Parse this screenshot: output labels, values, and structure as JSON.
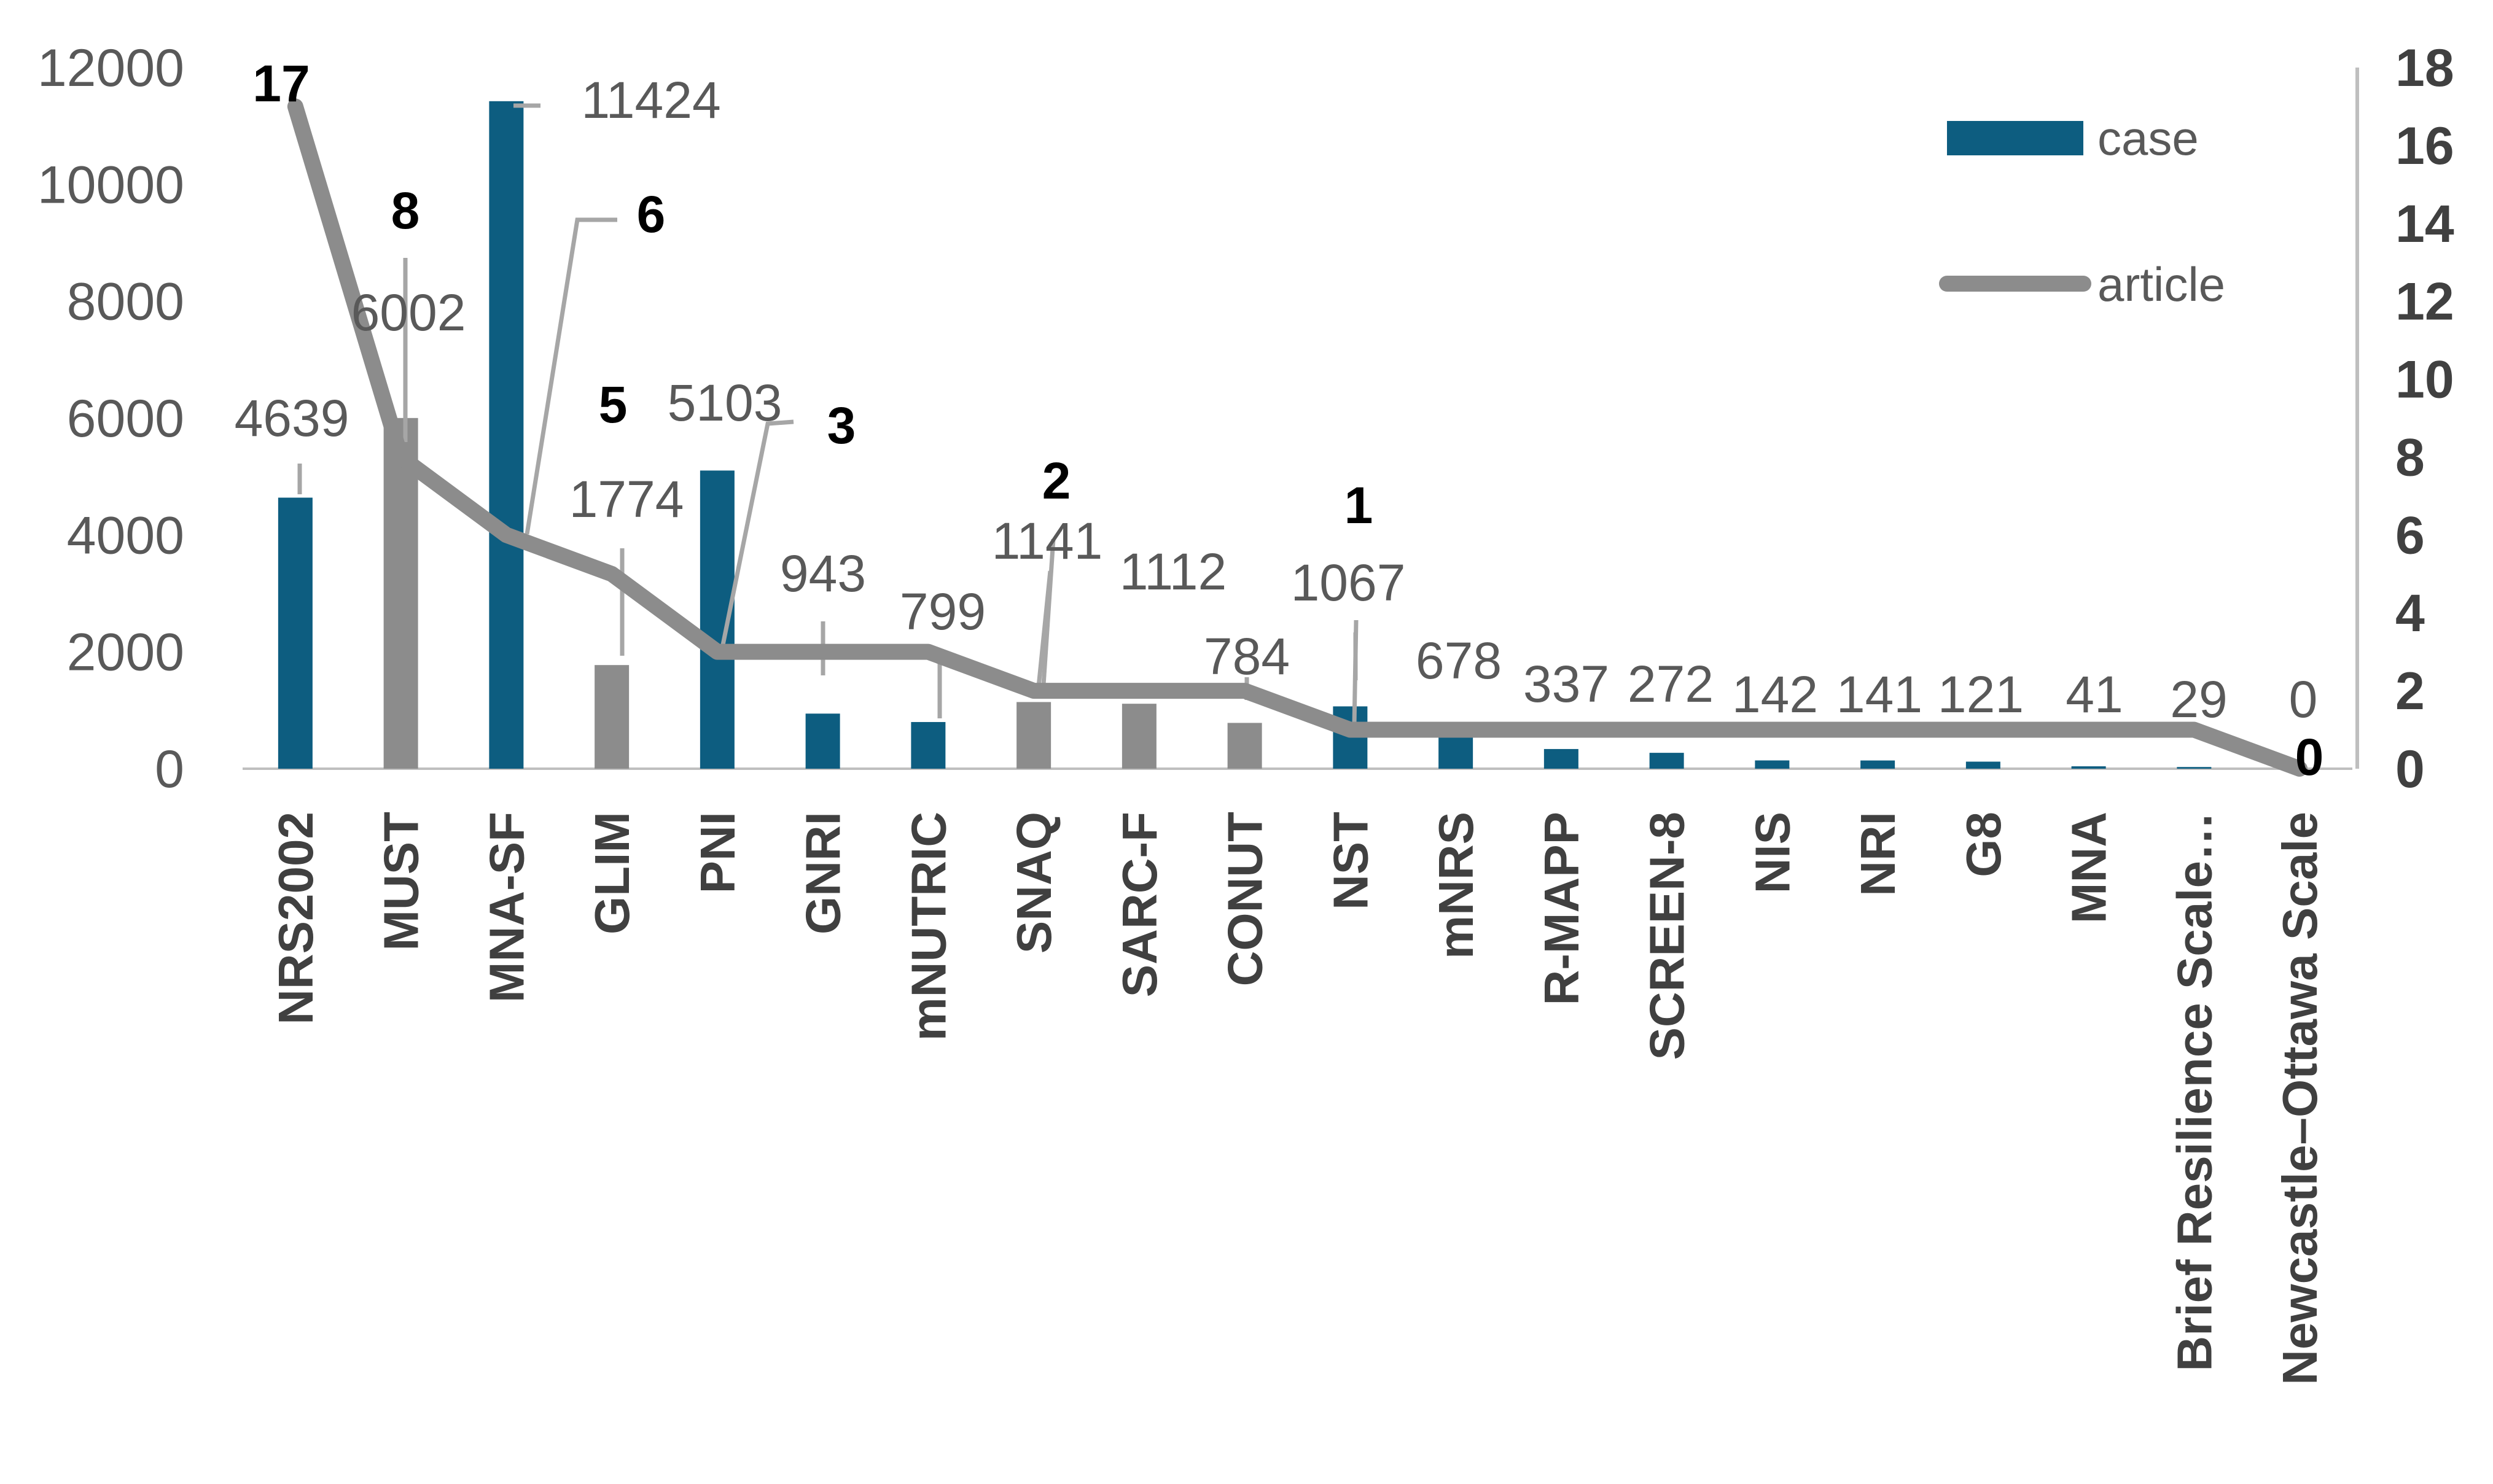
{
  "chart_data": {
    "type": "bar",
    "categories": [
      "NRS2002",
      "MUST",
      "MNA-SF",
      "GLIM",
      "PNI",
      "GNRI",
      "mNUTRIC",
      "SNAQ",
      "SARC-F",
      "CONUT",
      "NST",
      "mNRS",
      "R-MAPP",
      "SCREEN-8",
      "NIS",
      "NRI",
      "G8",
      "MNA",
      "Brief Resilience Scale…",
      "Newcastle–Ottawa Scale"
    ],
    "series": [
      {
        "name": "case",
        "kind": "bar",
        "axis": "left",
        "values": [
          4639,
          6002,
          11424,
          1774,
          5103,
          943,
          799,
          1141,
          1112,
          784,
          1067,
          678,
          337,
          272,
          142,
          141,
          121,
          41,
          29,
          0
        ],
        "value_labels": [
          "4639",
          "6002",
          "11424",
          "1774",
          "5103",
          "943",
          "799",
          "1141",
          "1112",
          "784",
          "1067",
          "678",
          "337",
          "272",
          "142",
          "141",
          "121",
          "41",
          "29",
          "0"
        ],
        "bar_colors": [
          "#0d5d80",
          "#8c8c8c",
          "#0d5d80",
          "#8c8c8c",
          "#0d5d80",
          "#0d5d80",
          "#0d5d80",
          "#8c8c8c",
          "#8c8c8c",
          "#8c8c8c",
          "#0d5d80",
          "#0d5d80",
          "#0d5d80",
          "#0d5d80",
          "#0d5d80",
          "#0d5d80",
          "#0d5d80",
          "#0d5d80",
          "#0d5d80",
          "#0d5d80"
        ]
      },
      {
        "name": "article",
        "kind": "line",
        "axis": "right",
        "values": [
          17,
          8,
          6,
          5,
          3,
          3,
          3,
          2,
          2,
          2,
          1,
          1,
          1,
          1,
          1,
          1,
          1,
          1,
          1,
          0
        ],
        "value_labels": [
          "17",
          "8",
          "6",
          "5",
          "3",
          "",
          "",
          "2",
          "",
          "",
          "1",
          "",
          "",
          "",
          "",
          "",
          "",
          "",
          "",
          "0"
        ]
      }
    ],
    "y_left": {
      "ylim": [
        0,
        12000
      ],
      "ticks": [
        "0",
        "2000",
        "4000",
        "6000",
        "8000",
        "10000",
        "12000"
      ],
      "tick_values": [
        0,
        2000,
        4000,
        6000,
        8000,
        10000,
        12000
      ]
    },
    "y_right": {
      "ylim": [
        0,
        18
      ],
      "ticks": [
        "0",
        "2",
        "4",
        "6",
        "8",
        "10",
        "12",
        "14",
        "16",
        "18"
      ],
      "tick_values": [
        0,
        2,
        4,
        6,
        8,
        10,
        12,
        14,
        16,
        18
      ]
    },
    "legend": {
      "position": "top-right",
      "items": [
        {
          "label": "case",
          "kind": "bar",
          "color": "#0d5d80"
        },
        {
          "label": "article",
          "kind": "line",
          "color": "#8c8c8c"
        }
      ]
    },
    "colors": {
      "bar_primary": "#0d5d80",
      "bar_secondary": "#8c8c8c",
      "line": "#8c8c8c",
      "axis": "#bfbfbf"
    },
    "grid": false
  }
}
